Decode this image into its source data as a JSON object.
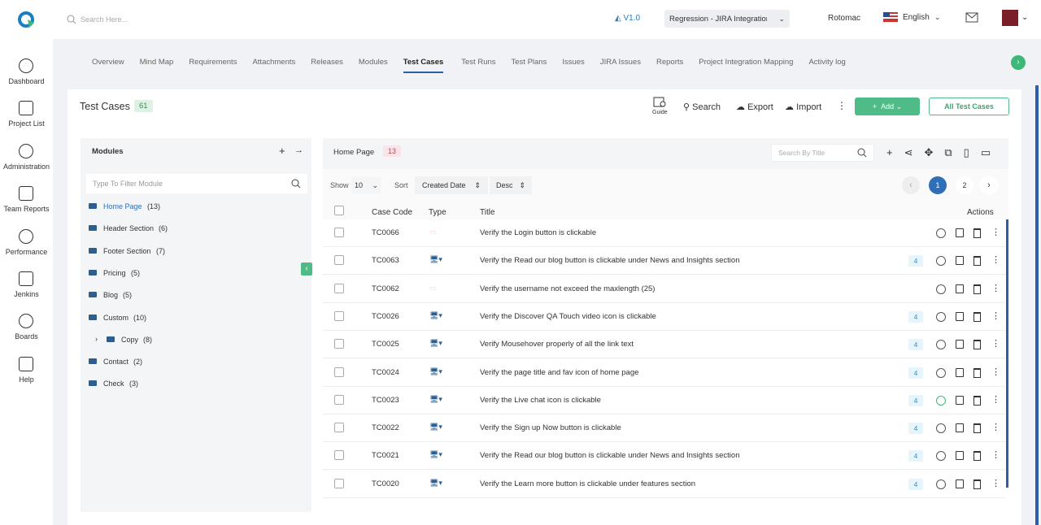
{
  "header": {
    "search_placeholder": "Search Here...",
    "version": "V1.0",
    "project": "Regression - JIRA Integration",
    "user": "Rotomac",
    "language": "English"
  },
  "sidebar": [
    "Dashboard",
    "Project List",
    "Administration",
    "Team Reports",
    "Performance",
    "Jenkins",
    "Boards",
    "Help"
  ],
  "tabs": [
    {
      "label": "Overview",
      "active": false
    },
    {
      "label": "Mind Map",
      "active": false
    },
    {
      "label": "Requirements",
      "active": false
    },
    {
      "label": "Attachments",
      "active": false
    },
    {
      "label": "Releases",
      "active": false
    },
    {
      "label": "Modules",
      "active": false
    },
    {
      "label": "Test Cases",
      "active": true
    },
    {
      "label": "Test Runs",
      "active": false
    },
    {
      "label": "Test Plans",
      "active": false
    },
    {
      "label": "Issues",
      "active": false
    },
    {
      "label": "JIRA Issues",
      "active": false
    },
    {
      "label": "Reports",
      "active": false
    },
    {
      "label": "Project Integration Mapping",
      "active": false
    },
    {
      "label": "Activity log",
      "active": false
    }
  ],
  "page": {
    "title": "Test Cases",
    "count": 61,
    "guide": "Guide",
    "search": "Search",
    "export": "Export",
    "import": "Import",
    "add": "Add",
    "all": "All Test Cases"
  },
  "modules": {
    "title": "Modules",
    "filter_placeholder": "Type To Filter Module",
    "items": [
      {
        "name": "Home Page",
        "count": "(13)",
        "active": true
      },
      {
        "name": "Header Section",
        "count": "(6)",
        "active": false
      },
      {
        "name": "Footer Section",
        "count": "(7)",
        "active": false
      },
      {
        "name": "Pricing",
        "count": "(5)",
        "active": false
      },
      {
        "name": "Blog",
        "count": "(5)",
        "active": false
      },
      {
        "name": "Custom",
        "count": "(10)",
        "active": false
      },
      {
        "name": "Copy",
        "count": "(8)",
        "active": false,
        "nested": true
      },
      {
        "name": "Contact",
        "count": "(2)",
        "active": false
      },
      {
        "name": "Check",
        "count": "(3)",
        "active": false
      }
    ]
  },
  "list": {
    "breadcrumb": "Home Page",
    "breadcrumb_count": 13,
    "search_placeholder": "Search By Title",
    "show_label": "Show",
    "page_size": 10,
    "sort_label": "Sort",
    "sort_field": "Created Date",
    "sort_order": "Desc",
    "pages": [
      {
        "number": 1,
        "active": true
      },
      {
        "number": 2,
        "active": false
      }
    ],
    "columns": {
      "code": "Case Code",
      "type": "Type",
      "title": "Title",
      "actions": "Actions"
    },
    "rows": [
      {
        "code": "TC0066",
        "title": "Verify the Login button is clickable",
        "type_icon": false
      },
      {
        "code": "TC0063",
        "title": "Verify the Read our blog button is clickable under News and Insights section",
        "type_icon": true,
        "count": 4
      },
      {
        "code": "TC0062",
        "title": "Verify the username not exceed the maxlength (25)",
        "type_icon": false
      },
      {
        "code": "TC0026",
        "title": "Verify the Discover QA Touch video icon is clickable",
        "type_icon": true,
        "count": 4
      },
      {
        "code": "TC0025",
        "title": "Verify Mousehover properly of all the link text",
        "type_icon": true,
        "count": 4
      },
      {
        "code": "TC0024",
        "title": "Verify the page title and fav icon of home page",
        "type_icon": true,
        "count": 4
      },
      {
        "code": "TC0023",
        "title": "Verify the Live chat icon is clickable",
        "type_icon": true,
        "count": 4,
        "passed": true
      },
      {
        "code": "TC0022",
        "title": "Verify the Sign up Now button is clickable",
        "type_icon": true,
        "count": 4
      },
      {
        "code": "TC0021",
        "title": "Verify the Read our blog button is clickable under News and Insights section",
        "type_icon": true,
        "count": 4
      },
      {
        "code": "TC0020",
        "title": "Verify the Learn more button is clickable under features section",
        "type_icon": true,
        "count": 4
      }
    ]
  }
}
